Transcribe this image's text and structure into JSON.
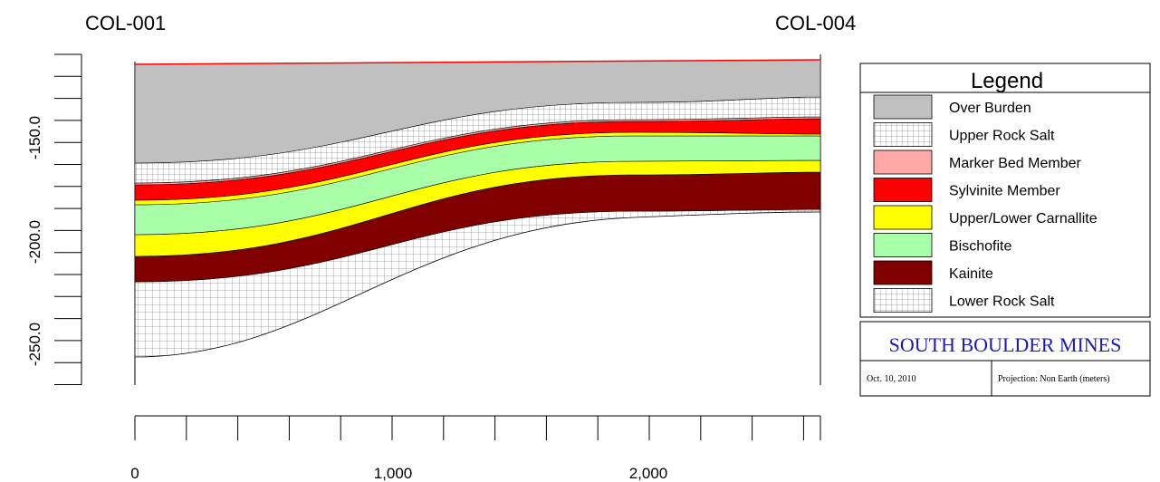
{
  "wells": {
    "left": "COL-001",
    "right": "COL-004"
  },
  "depth_axis": {
    "ticks": [
      "-150.0",
      "-200.0",
      "-250.0"
    ]
  },
  "distance_axis": {
    "ticks": [
      "0",
      "1,000",
      "2,000"
    ]
  },
  "legend": {
    "title": "Legend",
    "items": [
      {
        "label": "Over Burden",
        "color": "#c0c0c0",
        "pattern": "solid"
      },
      {
        "label": "Upper Rock Salt",
        "color": "#ffffff",
        "pattern": "grid"
      },
      {
        "label": "Marker Bed Member",
        "color": "#ffa8a8",
        "pattern": "solid"
      },
      {
        "label": "Sylvinite Member",
        "color": "#ff0000",
        "pattern": "solid"
      },
      {
        "label": "Upper/Lower Carnallite",
        "color": "#ffff00",
        "pattern": "solid"
      },
      {
        "label": "Bischofite",
        "color": "#a8ffa8",
        "pattern": "solid"
      },
      {
        "label": "Kainite",
        "color": "#800000",
        "pattern": "solid"
      },
      {
        "label": "Lower Rock Salt",
        "color": "#ffffff",
        "pattern": "grid"
      }
    ]
  },
  "title_block": {
    "company": "SOUTH BOULDER MINES",
    "date": "Oct. 10, 2010",
    "projection": "Projection: Non Earth (meters)",
    "company_color": "#1a1ab4"
  }
}
